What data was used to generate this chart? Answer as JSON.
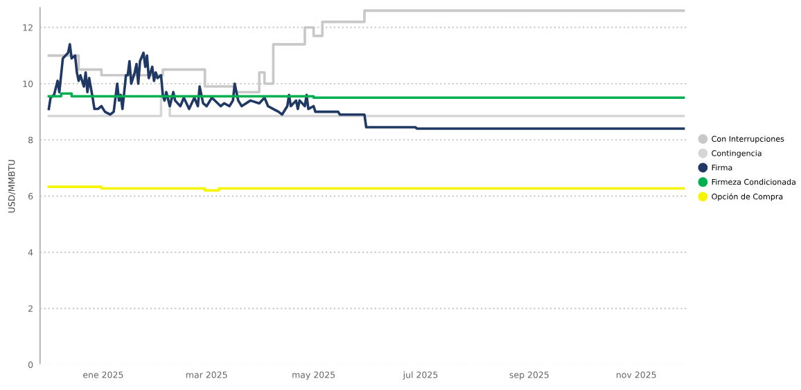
{
  "chart_data": {
    "type": "line",
    "ylabel": "USD/MMBTU",
    "xlim": [
      "2024-11-26",
      "2025-12-01"
    ],
    "ylim": [
      0,
      12.7
    ],
    "xticks": [
      {
        "value": "2025-01-01",
        "label": "ene 2025"
      },
      {
        "value": "2025-03-01",
        "label": "mar 2025"
      },
      {
        "value": "2025-05-01",
        "label": "may 2025"
      },
      {
        "value": "2025-07-01",
        "label": "jul 2025"
      },
      {
        "value": "2025-09-01",
        "label": "sep 2025"
      },
      {
        "value": "2025-11-01",
        "label": "nov 2025"
      }
    ],
    "yticks": [
      0,
      2,
      4,
      6,
      8,
      10,
      12
    ],
    "grid": "y",
    "legend": "right",
    "marker": "none",
    "line_style": "solid",
    "series": [
      {
        "name": "Con Interrupciones",
        "color": "#c8c8c8",
        "type": "step",
        "x": [
          "2024-12-01",
          "2024-12-18",
          "2024-12-31",
          "2025-02-04",
          "2025-02-28",
          "2025-03-17",
          "2025-03-31",
          "2025-04-03",
          "2025-04-08",
          "2025-04-26",
          "2025-05-01",
          "2025-05-06",
          "2025-05-30",
          "2025-11-28"
        ],
        "values": [
          11.0,
          10.5,
          10.3,
          10.5,
          9.9,
          9.7,
          10.4,
          10.0,
          11.4,
          12.0,
          11.7,
          12.2,
          12.6,
          12.6
        ]
      },
      {
        "name": "Contingencia",
        "color": "#d6d6d6",
        "type": "step",
        "x": [
          "2024-12-01",
          "2025-02-03",
          "2025-02-08",
          "2025-11-28"
        ],
        "values": [
          8.85,
          9.5,
          8.85,
          8.85
        ]
      },
      {
        "name": "Firma",
        "color": "#1f3864",
        "x": [
          "2024-12-01",
          "2024-12-02",
          "2024-12-04",
          "2024-12-06",
          "2024-12-07",
          "2024-12-08",
          "2024-12-09",
          "2024-12-12",
          "2024-12-13",
          "2024-12-14",
          "2024-12-16",
          "2024-12-17",
          "2024-12-18",
          "2024-12-19",
          "2024-12-21",
          "2024-12-22",
          "2024-12-23",
          "2024-12-24",
          "2024-12-26",
          "2024-12-27",
          "2024-12-29",
          "2024-12-31",
          "2025-01-02",
          "2025-01-05",
          "2025-01-07",
          "2025-01-09",
          "2025-01-10",
          "2025-01-11",
          "2025-01-12",
          "2025-01-14",
          "2025-01-15",
          "2025-01-16",
          "2025-01-17",
          "2025-01-19",
          "2025-01-20",
          "2025-01-21",
          "2025-01-22",
          "2025-01-24",
          "2025-01-25",
          "2025-01-26",
          "2025-01-27",
          "2025-01-29",
          "2025-01-30",
          "2025-01-31",
          "2025-02-01",
          "2025-02-03",
          "2025-02-04",
          "2025-02-05",
          "2025-02-06",
          "2025-02-08",
          "2025-02-10",
          "2025-02-11",
          "2025-02-14",
          "2025-02-16",
          "2025-02-19",
          "2025-02-22",
          "2025-02-24",
          "2025-02-25",
          "2025-02-27",
          "2025-03-01",
          "2025-03-04",
          "2025-03-09",
          "2025-03-11",
          "2025-03-14",
          "2025-03-16",
          "2025-03-17",
          "2025-03-19",
          "2025-03-21",
          "2025-03-26",
          "2025-03-31",
          "2025-04-03",
          "2025-04-05",
          "2025-04-08",
          "2025-04-11",
          "2025-04-13",
          "2025-04-16",
          "2025-04-17",
          "2025-04-18",
          "2025-04-21",
          "2025-04-22",
          "2025-04-23",
          "2025-04-26",
          "2025-04-27",
          "2025-04-28",
          "2025-05-01",
          "2025-05-02",
          "2025-05-15",
          "2025-05-16",
          "2025-05-30",
          "2025-05-31",
          "2025-06-28",
          "2025-06-29",
          "2025-11-28"
        ],
        "values": [
          9.1,
          9.5,
          9.6,
          10.1,
          9.7,
          10.3,
          10.9,
          11.1,
          11.4,
          10.9,
          11.0,
          10.4,
          10.1,
          10.3,
          9.9,
          10.4,
          9.7,
          10.2,
          9.5,
          9.1,
          9.1,
          9.2,
          9.0,
          8.9,
          9.0,
          10.0,
          9.4,
          9.6,
          9.1,
          10.3,
          10.3,
          10.8,
          10.0,
          10.4,
          10.7,
          10.0,
          10.8,
          11.1,
          10.6,
          11.0,
          10.2,
          10.6,
          10.1,
          10.4,
          10.2,
          10.3,
          9.6,
          9.4,
          9.7,
          9.2,
          9.7,
          9.4,
          9.2,
          9.5,
          9.1,
          9.5,
          9.2,
          9.9,
          9.3,
          9.2,
          9.5,
          9.2,
          9.3,
          9.2,
          9.4,
          10.0,
          9.4,
          9.2,
          9.4,
          9.3,
          9.5,
          9.2,
          9.1,
          9.0,
          8.9,
          9.2,
          9.6,
          9.2,
          9.4,
          9.1,
          9.4,
          9.2,
          9.6,
          9.1,
          9.2,
          9.0,
          9.0,
          8.9,
          8.9,
          8.45,
          8.45,
          8.4,
          8.4
        ]
      },
      {
        "name": "Firmeza Condicionada",
        "color": "#00b050",
        "type": "step",
        "x": [
          "2024-12-01",
          "2024-12-08",
          "2024-12-14",
          "2025-02-04",
          "2025-05-01",
          "2025-11-28"
        ],
        "values": [
          9.55,
          9.65,
          9.55,
          9.55,
          9.5,
          9.5
        ]
      },
      {
        "name": "Opción de Compra",
        "color": "#f5f500",
        "type": "step",
        "x": [
          "2024-12-01",
          "2024-12-31",
          "2025-02-28",
          "2025-03-08",
          "2025-11-28"
        ],
        "values": [
          6.33,
          6.27,
          6.2,
          6.27,
          6.27
        ]
      }
    ]
  }
}
